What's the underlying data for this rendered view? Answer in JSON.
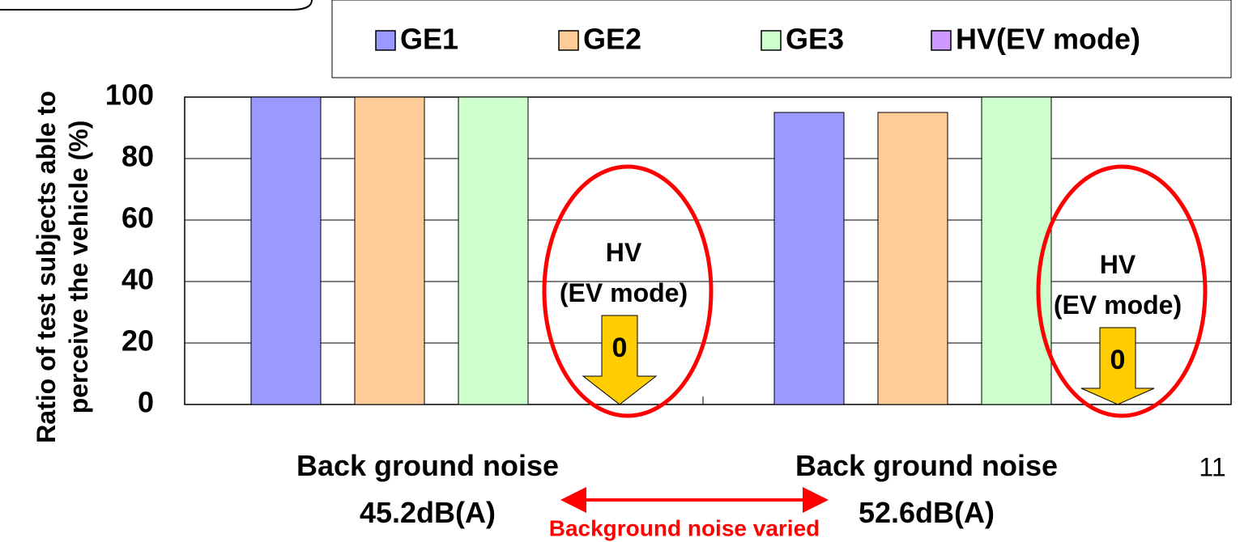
{
  "chart_data": {
    "type": "bar",
    "y_label": [
      "Ratio of test subjects able to",
      "perceive the vehicle (%)"
    ],
    "categories": [
      [
        "Back ground noise",
        "45.2dB(A)"
      ],
      [
        "Back ground noise",
        "52.6dB(A)"
      ]
    ],
    "series": [
      {
        "name": "GE1",
        "color": "#9999ff",
        "values": [
          100,
          95
        ]
      },
      {
        "name": "GE2",
        "color": "#ffcc99",
        "values": [
          100,
          95
        ]
      },
      {
        "name": "GE3",
        "color": "#ccffcc",
        "values": [
          100,
          100
        ]
      },
      {
        "name": "HV(EV mode)",
        "color": "#cc99ff",
        "values": [
          0,
          0
        ]
      }
    ],
    "ylim": [
      0,
      100
    ],
    "yticks": [
      0,
      20,
      40,
      60,
      80,
      100
    ],
    "grid": true,
    "annotations": [
      [
        "HV",
        "(EV mode)"
      ],
      [
        "HV",
        "(EV mode)"
      ]
    ],
    "note": "Background noise varied",
    "page_number": "11"
  }
}
